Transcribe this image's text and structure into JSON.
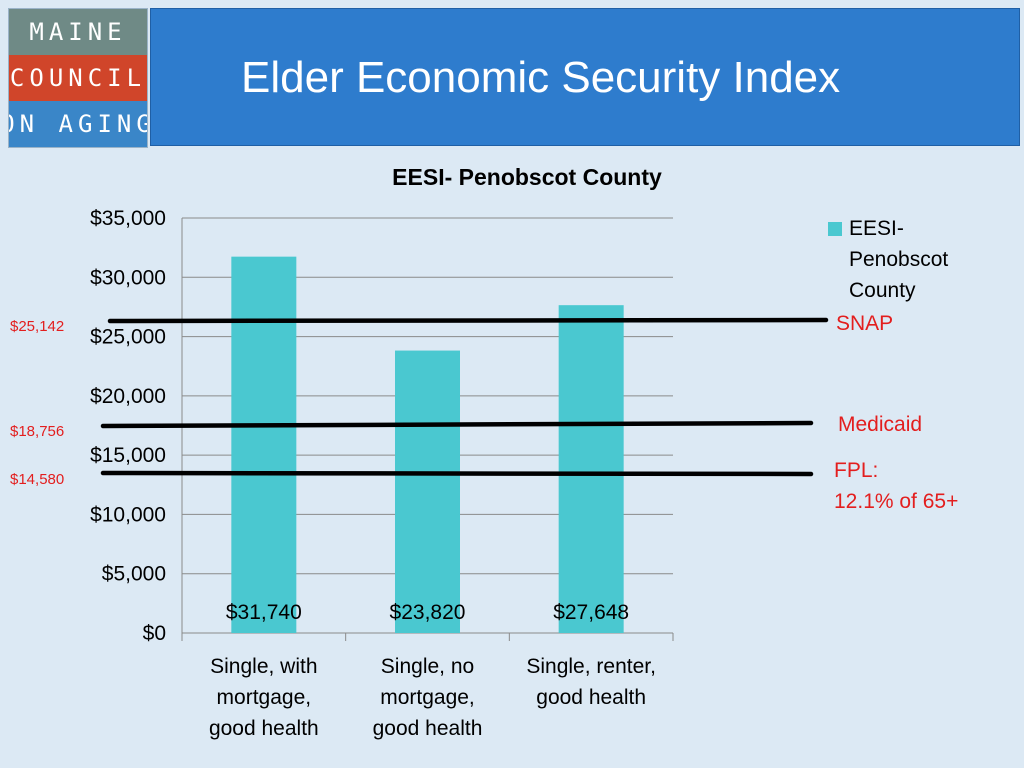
{
  "logo": {
    "lines": [
      "MAINE",
      "COUNCIL",
      "ON AGING"
    ]
  },
  "slide": {
    "title": "Elder Economic Security Index"
  },
  "colors": {
    "bar": "#4ac8d0",
    "title_bar": "#2e7ccd",
    "background": "#dce9f4",
    "annotation": "#e31e1e"
  },
  "chart_data": {
    "type": "bar",
    "title": "EESI- Penobscot County",
    "categories": [
      [
        "Single, with",
        "mortgage,",
        "good health"
      ],
      [
        "Single, no",
        "mortgage,",
        "good health"
      ],
      [
        "Single, renter,",
        "good health"
      ]
    ],
    "series": [
      {
        "name": "EESI- Penobscot County",
        "legend_lines": [
          "EESI-",
          "Penobscot",
          "County"
        ],
        "values": [
          31740,
          23820,
          27648
        ]
      }
    ],
    "data_labels": [
      "$31,740",
      "$23,820",
      "$27,648"
    ],
    "ylim": [
      0,
      35000
    ],
    "yticks": [
      0,
      5000,
      10000,
      15000,
      20000,
      25000,
      30000,
      35000
    ],
    "ytick_labels": [
      "$0",
      "$5,000",
      "$10,000",
      "$15,000",
      "$20,000",
      "$25,000",
      "$30,000",
      "$35,000"
    ],
    "grid": true,
    "legend_position": "right",
    "reference_lines": [
      {
        "name": "SNAP",
        "value_label": "$25,142",
        "label_lines": [
          "SNAP"
        ]
      },
      {
        "name": "Medicaid",
        "value_label": "$18,756",
        "label_lines": [
          "Medicaid"
        ]
      },
      {
        "name": "FPL",
        "value_label": "$14,580",
        "label_lines": [
          "FPL:",
          "12.1% of 65+"
        ]
      }
    ]
  }
}
